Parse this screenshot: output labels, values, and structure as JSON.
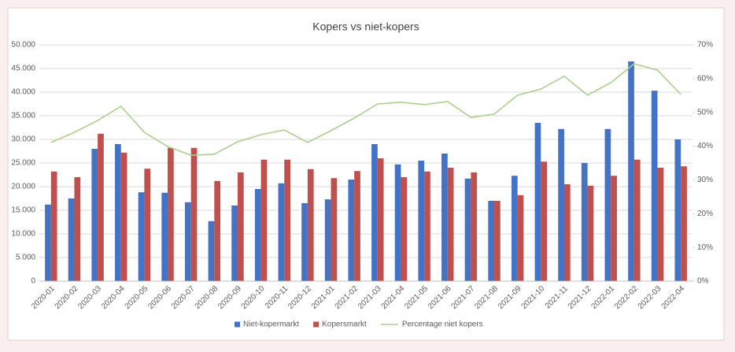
{
  "chart_data": {
    "type": "bar",
    "title": "Kopers vs niet-kopers",
    "categories": [
      "2020-01",
      "2020-02",
      "2020-03",
      "2020-04",
      "2020-05",
      "2020-06",
      "2020-07",
      "2020-08",
      "2020-09",
      "2020-10",
      "2020-11",
      "2020-12",
      "2021-01",
      "2021-02",
      "2021-03",
      "2021-04",
      "2021-05",
      "2021-06",
      "2021-07",
      "2021-08",
      "2021-09",
      "2021-10",
      "2021-11",
      "2021-12",
      "2022-01",
      "2022-02",
      "2022-03",
      "2022-04"
    ],
    "series": [
      {
        "name": "Niet-kopermarkt",
        "color": "#4472c4",
        "type": "bar",
        "values": [
          16200,
          17500,
          28000,
          29000,
          18800,
          18700,
          16700,
          12700,
          16000,
          19500,
          20700,
          16500,
          17300,
          21500,
          29000,
          24700,
          25500,
          27000,
          21700,
          17000,
          22300,
          33500,
          32200,
          25000,
          32200,
          46500,
          40300,
          30000
        ]
      },
      {
        "name": "Kopersmarkt",
        "color": "#c0504d",
        "type": "bar",
        "values": [
          23200,
          22000,
          31200,
          27200,
          23800,
          28200,
          28200,
          21200,
          23000,
          25700,
          25700,
          23700,
          21800,
          23300,
          26000,
          22000,
          23200,
          24000,
          23000,
          17000,
          18200,
          25300,
          20500,
          20200,
          22300,
          25700,
          24000,
          24300
        ]
      },
      {
        "name": "Percentage niet kopers",
        "color": "#a9d18e",
        "type": "line",
        "axis": "y2",
        "values": [
          41.1,
          44.1,
          47.6,
          51.8,
          44.1,
          39.9,
          37.3,
          37.6,
          41.3,
          43.4,
          44.8,
          41.1,
          44.6,
          48.3,
          52.5,
          53.0,
          52.3,
          53.2,
          48.5,
          49.5,
          55.1,
          56.9,
          60.7,
          55.1,
          58.8,
          64.4,
          62.5,
          55.3
        ]
      }
    ],
    "ylim": [
      0,
      50000
    ],
    "yticks": [
      0,
      {
        "value": 5000,
        "label": "5.000"
      },
      {
        "value": 10000,
        "label": "10.000"
      },
      {
        "value": 15000,
        "label": "15.000"
      },
      {
        "value": 20000,
        "label": "20.000"
      },
      {
        "value": 25000,
        "label": "25.000"
      },
      {
        "value": 30000,
        "label": "30.000"
      },
      {
        "value": 35000,
        "label": "35.000"
      },
      {
        "value": 40000,
        "label": "40.000"
      },
      {
        "value": 45000,
        "label": "45.000"
      },
      {
        "value": 50000,
        "label": "50.000"
      }
    ],
    "y2lim": [
      0,
      70
    ],
    "y2ticks": [
      {
        "value": 0,
        "label": "0%"
      },
      {
        "value": 10,
        "label": "10%"
      },
      {
        "value": 20,
        "label": "20%"
      },
      {
        "value": 30,
        "label": "30%"
      },
      {
        "value": 40,
        "label": "40%"
      },
      {
        "value": 50,
        "label": "50%"
      },
      {
        "value": 60,
        "label": "60%"
      },
      {
        "value": 70,
        "label": "70%"
      }
    ],
    "grid": true,
    "legend": "bottom"
  }
}
